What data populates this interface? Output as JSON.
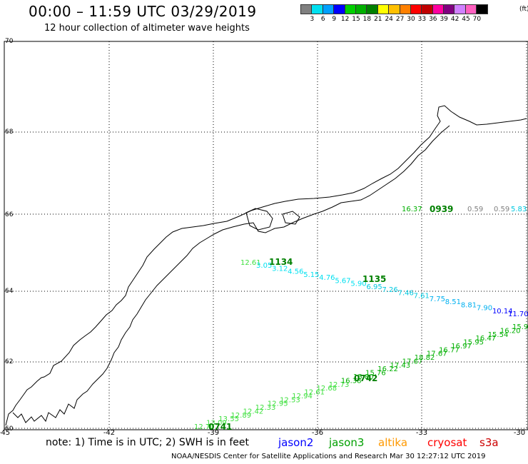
{
  "header": {
    "title": "00:00 – 11:59 UTC 03/29/2019",
    "subtitle": "12 hour collection of altimeter wave heights"
  },
  "legend": {
    "colors": [
      "#808080",
      "#00e0f0",
      "#00a0ff",
      "#0000ff",
      "#00d000",
      "#00b000",
      "#008000",
      "#ffff00",
      "#ffc000",
      "#ff8000",
      "#ff0000",
      "#c00000",
      "#ff00a0",
      "#800080",
      "#d080ff",
      "#ff60c0",
      "#000000"
    ],
    "ticks": [
      "3",
      "6",
      "9",
      "12",
      "15",
      "18",
      "21",
      "24",
      "27",
      "30",
      "33",
      "36",
      "39",
      "42",
      "45",
      "70"
    ],
    "unit": "(ft)"
  },
  "axes": {
    "lat_labels": [
      "70",
      "68",
      "66",
      "64",
      "62",
      "60"
    ],
    "lon_labels": [
      "-45",
      "-42",
      "-39",
      "-36",
      "-33",
      "-30"
    ]
  },
  "tracks": {
    "jason3_north": {
      "time": "0939",
      "values": [
        {
          "text": "16.37",
          "color": "#00b000"
        },
        {
          "text": "0.59",
          "color": "#808080"
        },
        {
          "text": "0.59",
          "color": "#808080"
        },
        {
          "text": "5.83",
          "color": "#00c8e0"
        }
      ]
    },
    "mid_track": {
      "times": [
        "1134",
        "1135"
      ],
      "values": [
        {
          "text": "12.61",
          "color": "#40e040"
        },
        {
          "text": "3.05",
          "color": "#00e0f0"
        },
        {
          "text": "3.12",
          "color": "#00e0f0"
        },
        {
          "text": "4.56",
          "color": "#00e0f0"
        },
        {
          "text": "5.15",
          "color": "#00e0f0"
        },
        {
          "text": "4.76",
          "color": "#00e0f0"
        },
        {
          "text": "5.67",
          "color": "#00e0f0"
        },
        {
          "text": "5.90",
          "color": "#00e0f0"
        },
        {
          "text": "6.95",
          "color": "#00c8e0"
        },
        {
          "text": "7.26",
          "color": "#00c8e0"
        },
        {
          "text": "7.46",
          "color": "#00c8e0"
        },
        {
          "text": "7.61",
          "color": "#00c8e0"
        },
        {
          "text": "7.75",
          "color": "#00b0f0"
        },
        {
          "text": "8.51",
          "color": "#00b0f0"
        },
        {
          "text": "8.81",
          "color": "#00b0f0"
        },
        {
          "text": "7.90",
          "color": "#00b0f0"
        },
        {
          "text": "10.14",
          "color": "#0000ff"
        },
        {
          "text": "11.70",
          "color": "#0000ff"
        }
      ]
    },
    "south_track": {
      "times": [
        "0741",
        "0742"
      ],
      "values": [
        {
          "text": "12.70",
          "color": "#40e040"
        },
        {
          "text": "13.09",
          "color": "#40e040"
        },
        {
          "text": "13.55",
          "color": "#40e040"
        },
        {
          "text": "12.89",
          "color": "#40e040"
        },
        {
          "text": "12.42",
          "color": "#40e040"
        },
        {
          "text": "12.33",
          "color": "#40e040"
        },
        {
          "text": "12.95",
          "color": "#40e040"
        },
        {
          "text": "12.53",
          "color": "#40e040"
        },
        {
          "text": "12.94",
          "color": "#40e040"
        },
        {
          "text": "12.61",
          "color": "#40e040"
        },
        {
          "text": "12.68",
          "color": "#40e040"
        },
        {
          "text": "12.73",
          "color": "#40e040"
        },
        {
          "text": "16.38",
          "color": "#00b000"
        },
        {
          "text": "15.80",
          "color": "#00b000"
        },
        {
          "text": "15.76",
          "color": "#00b000"
        },
        {
          "text": "16.22",
          "color": "#00b000"
        },
        {
          "text": "17.43",
          "color": "#00b000"
        },
        {
          "text": "17.67",
          "color": "#00b000"
        },
        {
          "text": "18.82",
          "color": "#00b000"
        },
        {
          "text": "17.67",
          "color": "#00b000"
        },
        {
          "text": "16.77",
          "color": "#00b000"
        },
        {
          "text": "16.97",
          "color": "#00b000"
        },
        {
          "text": "15.95",
          "color": "#00b000"
        },
        {
          "text": "16.47",
          "color": "#00b000"
        },
        {
          "text": "15.54",
          "color": "#00b000"
        },
        {
          "text": "16.20",
          "color": "#00b000"
        },
        {
          "text": "15.9",
          "color": "#00b000"
        }
      ]
    }
  },
  "footer": {
    "note": "note: 1) Time is in UTC; 2) SWH is in feet",
    "satellites": [
      {
        "name": "jason2",
        "color": "#0000ff"
      },
      {
        "name": "jason3",
        "color": "#00a000"
      },
      {
        "name": "altika",
        "color": "#ff9900"
      },
      {
        "name": "cryosat",
        "color": "#ff0000"
      },
      {
        "name": "s3a",
        "color": "#cc0000"
      }
    ],
    "credit": "NOAA/NESDIS Center for Satellite Applications and Research    Mar 30 12:27:12 UTC 2019"
  }
}
